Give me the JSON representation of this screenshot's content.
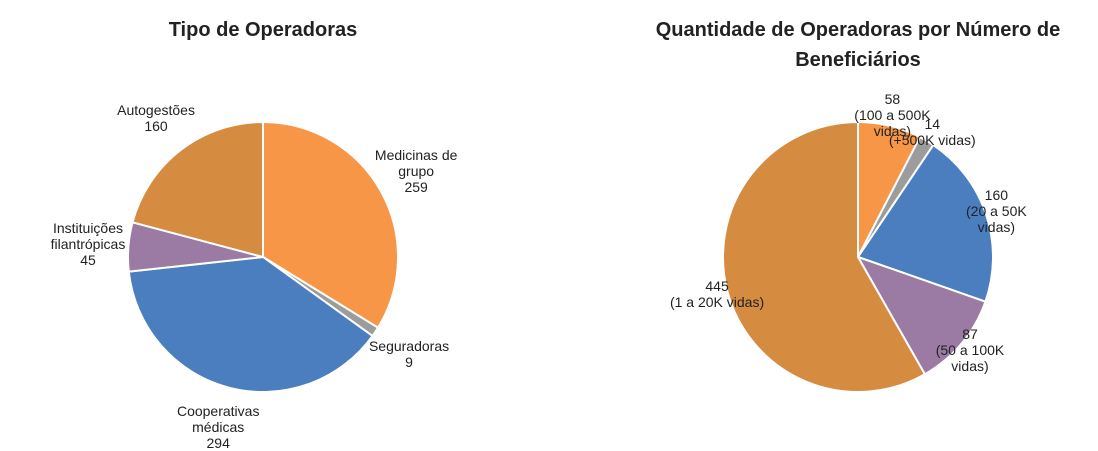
{
  "chart_data": [
    {
      "type": "pie",
      "title": "Tipo de Operadoras",
      "categories": [
        "Medicinas de grupo",
        "Seguradoras",
        "Cooperativas médicas",
        "Instituições filantrópicas",
        "Autogestões"
      ],
      "values": [
        259,
        9,
        294,
        45,
        160
      ],
      "colors": [
        "#f79646",
        "#9c9c9c",
        "#4a7ebf",
        "#9b7ba3",
        "#d58b40"
      ]
    },
    {
      "type": "pie",
      "title": "Quantidade de Operadoras por Número de Beneficiários",
      "categories": [
        "(100 a 500K vidas)",
        "(+500K vidas)",
        "(20 a 50K vidas)",
        "(50 a 100K vidas)",
        "(1 a 20K vidas)"
      ],
      "values": [
        58,
        14,
        160,
        87,
        445
      ],
      "colors": [
        "#f79646",
        "#9c9c9c",
        "#4a7ebf",
        "#9b7ba3",
        "#d58b40"
      ]
    }
  ]
}
